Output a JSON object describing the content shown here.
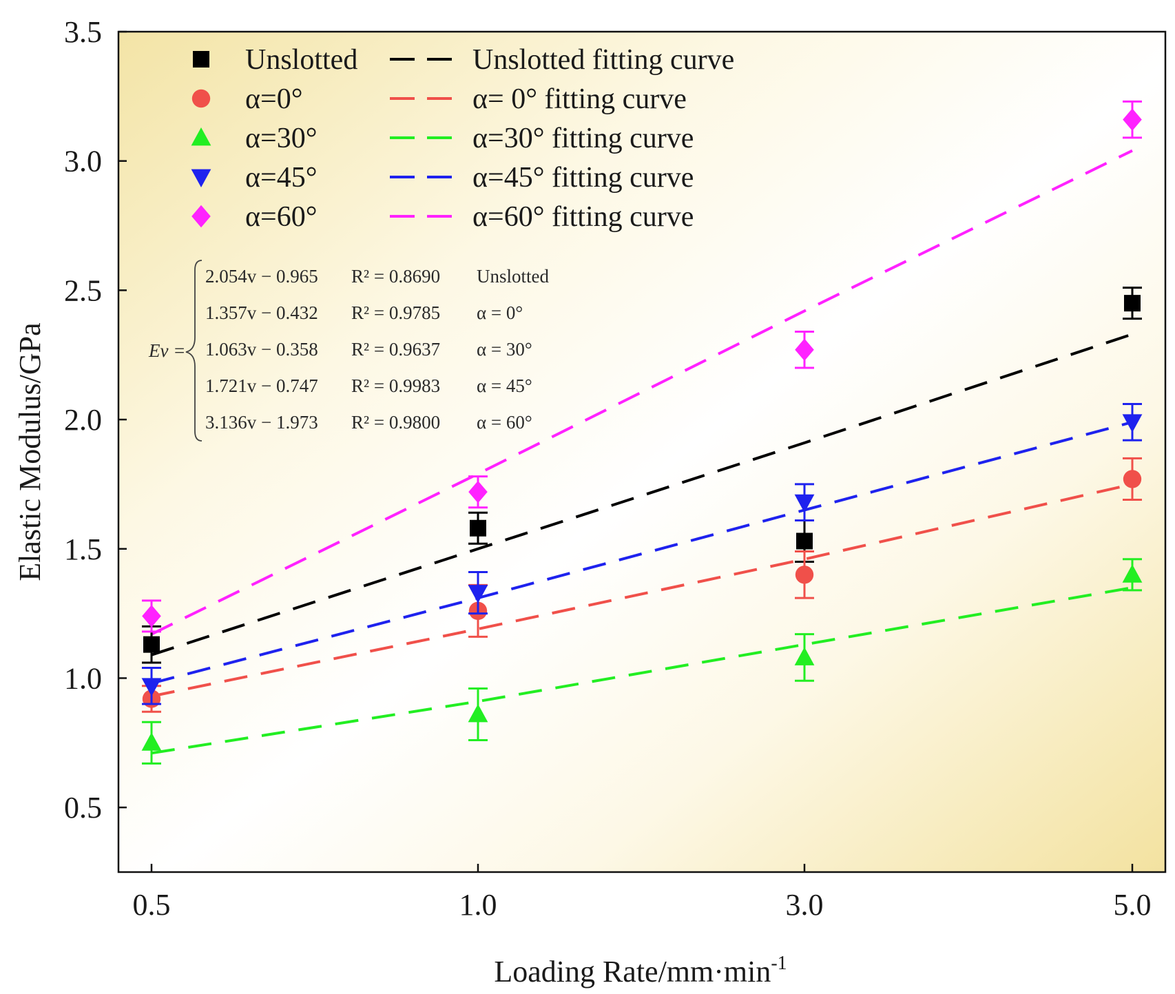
{
  "chart_data": {
    "type": "scatter",
    "title": "",
    "xlabel": "Loading Rate/mm·min",
    "xlabel_sup": "-1",
    "ylabel": "Elastic Modulus/GPa",
    "categories": [
      "0.5",
      "1.0",
      "3.0",
      "5.0"
    ],
    "yticks": [
      "0.5",
      "1.0",
      "1.5",
      "2.0",
      "2.5",
      "3.0",
      "3.5"
    ],
    "ylim": [
      0.25,
      3.5
    ],
    "x_scale": "categorical (equally spaced)",
    "grid": false,
    "legend_position": "top-left",
    "series": [
      {
        "name": "Unslotted",
        "fit_label": "Unslotted fitting curve",
        "color": "#000000",
        "marker": "square",
        "values": [
          1.13,
          1.58,
          1.53,
          2.45
        ],
        "errors": [
          0.07,
          0.06,
          0.08,
          0.06
        ],
        "fit_values": [
          1.09,
          1.5,
          1.91,
          2.33
        ]
      },
      {
        "name": "α=0°",
        "fit_label": "α= 0°  fitting curve",
        "color": "#f0504a",
        "marker": "circle",
        "values": [
          0.92,
          1.26,
          1.4,
          1.77
        ],
        "errors": [
          0.05,
          0.1,
          0.09,
          0.08
        ],
        "fit_values": [
          0.93,
          1.19,
          1.46,
          1.75
        ]
      },
      {
        "name": "α=30°",
        "fit_label": "α=30° fitting curve",
        "color": "#22ee22",
        "marker": "triangle-up",
        "values": [
          0.75,
          0.86,
          1.08,
          1.4
        ],
        "errors": [
          0.08,
          0.1,
          0.09,
          0.06
        ],
        "fit_values": [
          0.71,
          0.91,
          1.13,
          1.35
        ]
      },
      {
        "name": "α=45°",
        "fit_label": "α=45° fitting curve",
        "color": "#1e22ee",
        "marker": "triangle-down",
        "values": [
          0.97,
          1.33,
          1.68,
          1.99
        ],
        "errors": [
          0.07,
          0.08,
          0.07,
          0.07
        ],
        "fit_values": [
          0.98,
          1.31,
          1.65,
          1.99
        ]
      },
      {
        "name": "α=60°",
        "fit_label": "α=60° fitting curve",
        "color": "#ff22ff",
        "marker": "diamond",
        "values": [
          1.24,
          1.72,
          2.27,
          3.16
        ],
        "errors": [
          0.06,
          0.06,
          0.07,
          0.07
        ],
        "fit_values": [
          1.17,
          1.79,
          2.42,
          3.04
        ]
      }
    ],
    "equations": {
      "lead": "Ev =",
      "lines": [
        {
          "expr": "2.054v − 0.965",
          "r2": "R² = 0.8690",
          "label": "Unslotted"
        },
        {
          "expr": "1.357v − 0.432",
          "r2": "R² = 0.9785",
          "label": "α = 0°"
        },
        {
          "expr": "1.063v − 0.358",
          "r2": "R² = 0.9637",
          "label": "α = 30°"
        },
        {
          "expr": "1.721v − 0.747",
          "r2": "R² = 0.9983",
          "label": "α = 45°"
        },
        {
          "expr": "3.136v − 1.973",
          "r2": "R² = 0.9800",
          "label": "α = 60°"
        }
      ]
    }
  }
}
